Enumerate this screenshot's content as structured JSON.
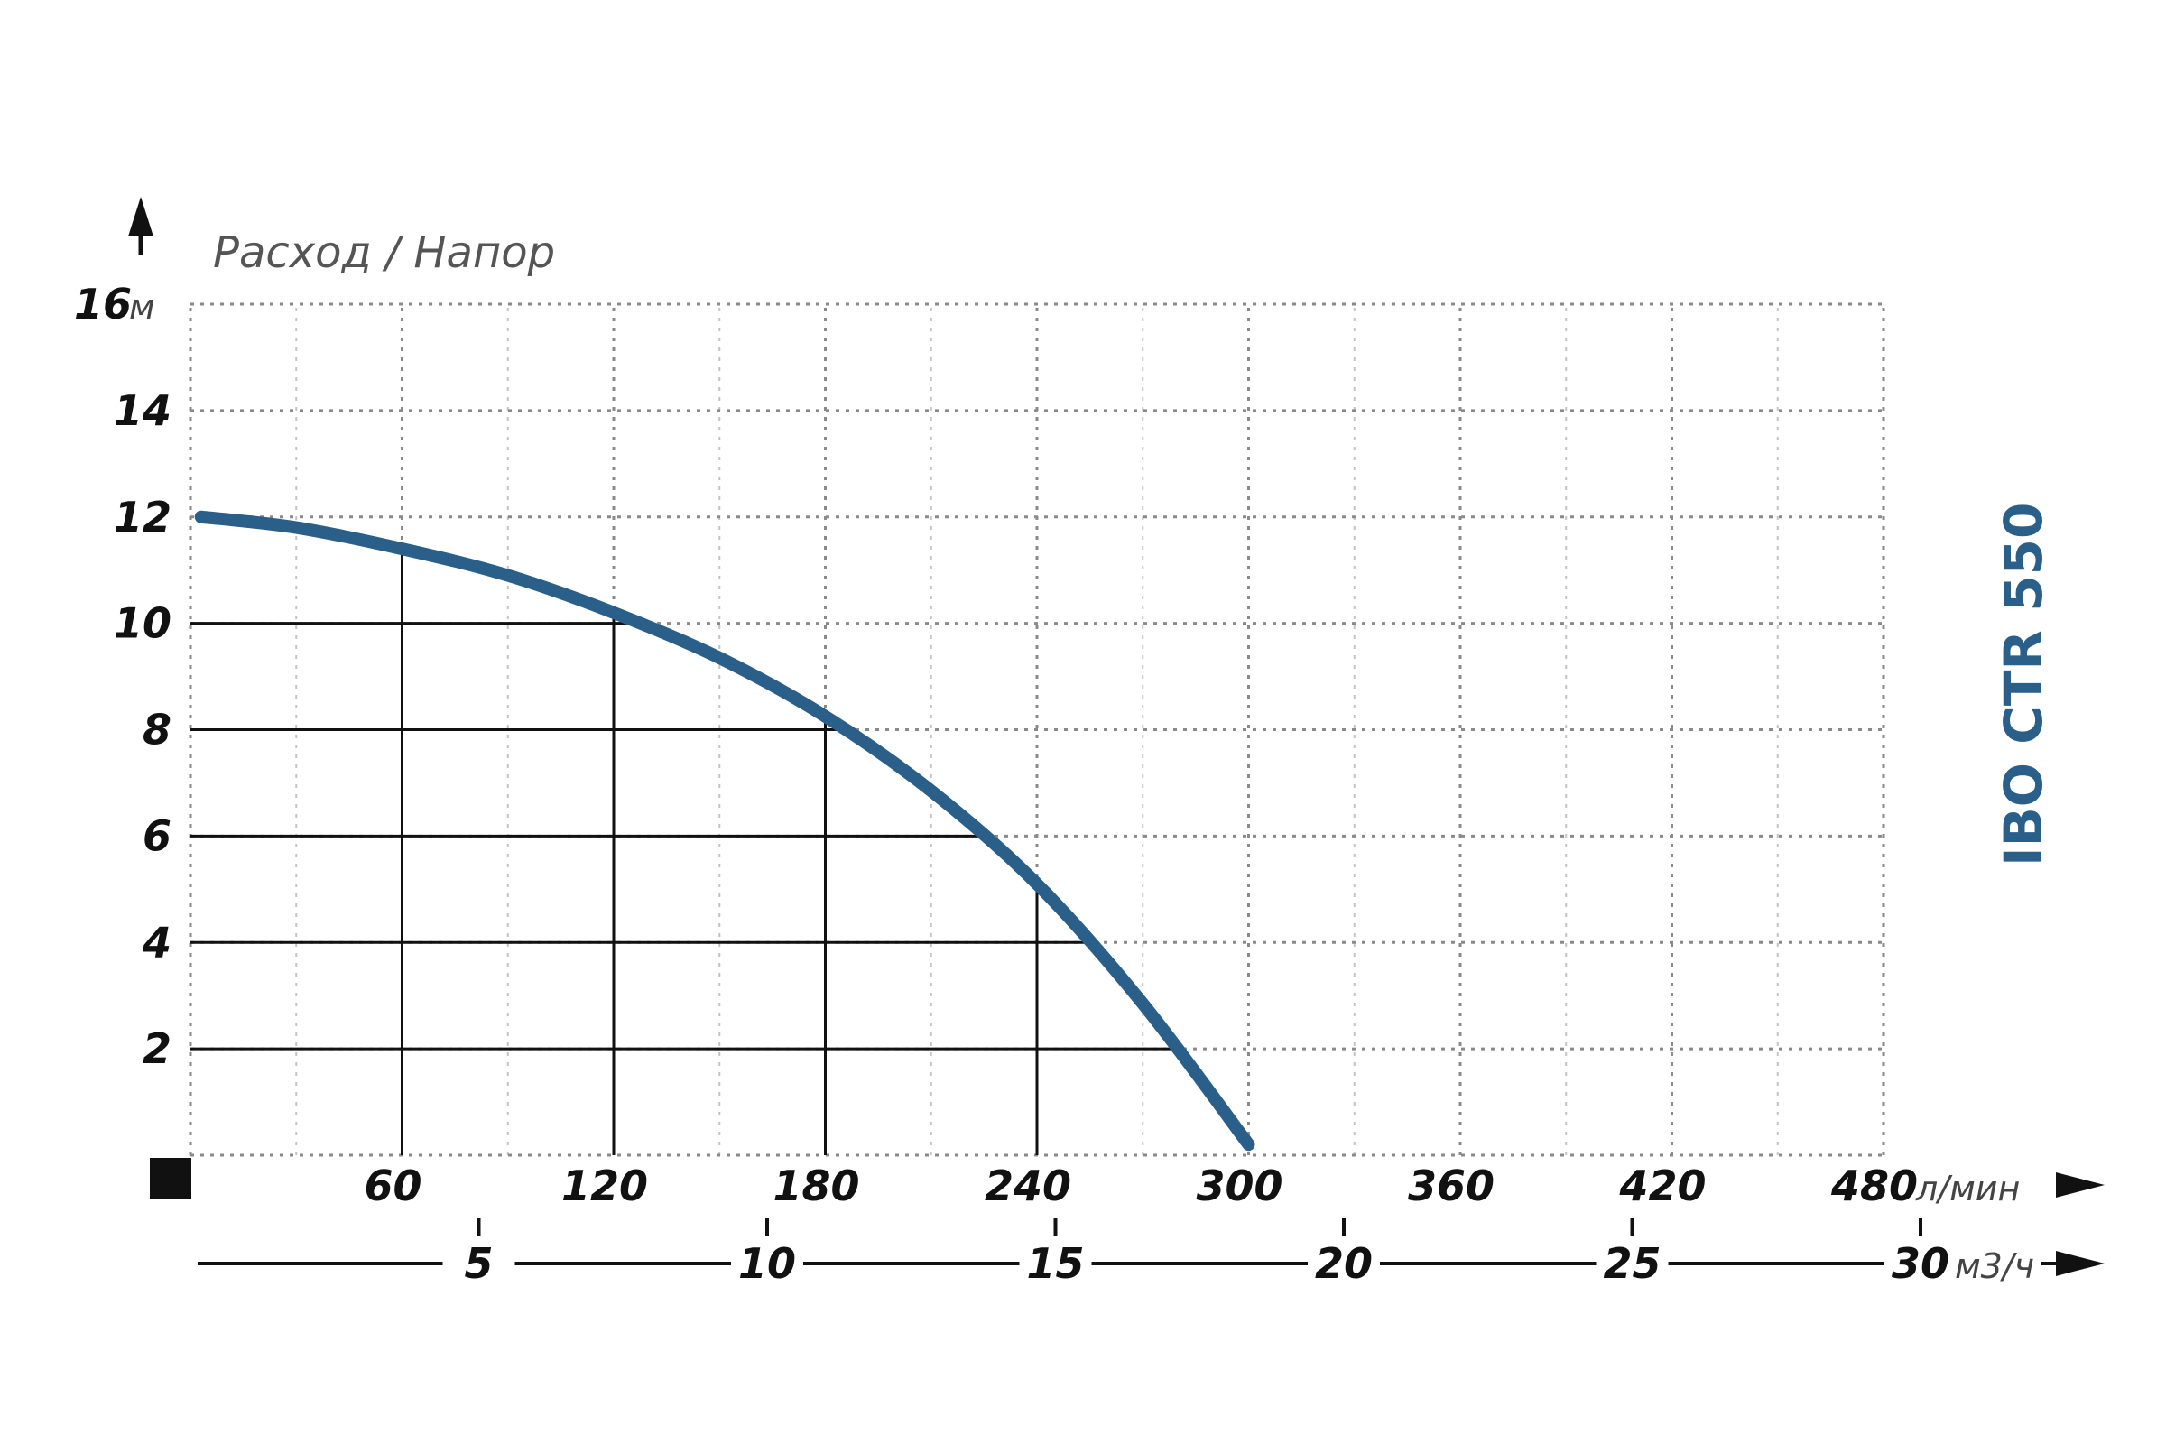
{
  "chart_data": {
    "type": "line",
    "title": "Расход / Напор",
    "model": "IBO CTR 550",
    "y_axis": {
      "unit": "м",
      "ylim": [
        0,
        16
      ],
      "tick_labels": [
        "2",
        "4",
        "6",
        "8",
        "10",
        "12",
        "14",
        "16"
      ]
    },
    "x_axis": {
      "unit": "л/мин",
      "xlim": [
        0,
        480
      ],
      "tick_labels": [
        "60",
        "120",
        "180",
        "240",
        "300",
        "360",
        "420",
        "480"
      ]
    },
    "x_axis_secondary": {
      "unit": "м3/ч",
      "xlim": [
        0,
        30
      ],
      "tick_labels": [
        "5",
        "10",
        "15",
        "20",
        "25",
        "30"
      ]
    },
    "series": [
      {
        "x": [
          3,
          30,
          60,
          90,
          120,
          150,
          180,
          210,
          240,
          270,
          300
        ],
        "y": [
          12.0,
          11.8,
          11.4,
          10.9,
          10.2,
          9.35,
          8.25,
          6.85,
          5.1,
          2.85,
          0.2
        ]
      }
    ],
    "readings": [
      {
        "x": 60,
        "y": 11.4
      },
      {
        "x": 120,
        "y": 10.2
      },
      {
        "x": 180,
        "y": 8.25
      },
      {
        "x": 240,
        "y": 5.1
      },
      {
        "x": 125,
        "y": 10
      },
      {
        "x": 184,
        "y": 8
      },
      {
        "x": 227,
        "y": 6
      },
      {
        "x": 256,
        "y": 4
      },
      {
        "x": 282,
        "y": 2
      }
    ],
    "grid": true,
    "colors": {
      "curve": "#2a5f8a",
      "grid": "#999999",
      "reading_lines": "#111111",
      "text": "#111111"
    }
  }
}
